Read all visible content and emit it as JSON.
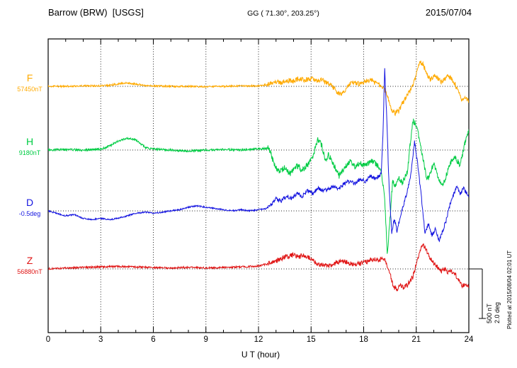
{
  "header": {
    "station": "Barrow (BRW)  [USGS]",
    "gg_coords": "GG ( 71.30°, 203.25°)",
    "date": "2015/07/04"
  },
  "side_note": "Plotted at 2015/08/04 02:01 UT",
  "scale_bar": {
    "nt_label": "500 nT",
    "deg_label": "2.0 deg",
    "nt": 500,
    "deg": 2.0
  },
  "x_axis": {
    "label": "U T (hour)",
    "min": 0,
    "max": 24,
    "major_ticks": [
      0,
      3,
      6,
      9,
      12,
      15,
      18,
      21,
      24
    ]
  },
  "chart_data": {
    "type": "line",
    "title": "Barrow (BRW) [USGS] magnetogram, 2015/07/04",
    "x_unit": "UT hour",
    "x_range": [
      0,
      24
    ],
    "grid": "dotted vertical at 3h intervals, dotted horizontal at each channel baseline",
    "scale": {
      "nT_per_bar": 500,
      "deg_per_bar": 2.0
    },
    "series": [
      {
        "name": "F",
        "unit": "nT",
        "baseline_label": "57450nT",
        "baseline_value": 57450,
        "color": "#FFAA00",
        "noise": 25,
        "points": [
          [
            0,
            0
          ],
          [
            1,
            0
          ],
          [
            2,
            5
          ],
          [
            3,
            5
          ],
          [
            3.5,
            10
          ],
          [
            4,
            25
          ],
          [
            4.5,
            35
          ],
          [
            5,
            25
          ],
          [
            5.5,
            10
          ],
          [
            6,
            5
          ],
          [
            7,
            0
          ],
          [
            8,
            0
          ],
          [
            9,
            -5
          ],
          [
            10,
            0
          ],
          [
            11,
            5
          ],
          [
            12,
            5
          ],
          [
            12.5,
            20
          ],
          [
            13,
            50
          ],
          [
            13.3,
            30
          ],
          [
            13.6,
            60
          ],
          [
            14,
            50
          ],
          [
            14.3,
            80
          ],
          [
            14.6,
            60
          ],
          [
            15,
            80
          ],
          [
            15.3,
            60
          ],
          [
            15.6,
            70
          ],
          [
            16,
            30
          ],
          [
            16.3,
            -20
          ],
          [
            16.6,
            -80
          ],
          [
            16.9,
            -60
          ],
          [
            17.2,
            20
          ],
          [
            17.5,
            40
          ],
          [
            17.8,
            20
          ],
          [
            18.1,
            50
          ],
          [
            18.4,
            70
          ],
          [
            18.7,
            30
          ],
          [
            19,
            10
          ],
          [
            19.2,
            -30
          ],
          [
            19.4,
            -120
          ],
          [
            19.6,
            -230
          ],
          [
            19.8,
            -270
          ],
          [
            20,
            -250
          ],
          [
            20.2,
            -180
          ],
          [
            20.4,
            -120
          ],
          [
            20.6,
            -60
          ],
          [
            20.8,
            0
          ],
          [
            21,
            120
          ],
          [
            21.2,
            240
          ],
          [
            21.4,
            220
          ],
          [
            21.6,
            120
          ],
          [
            21.8,
            60
          ],
          [
            22,
            110
          ],
          [
            22.2,
            90
          ],
          [
            22.4,
            40
          ],
          [
            22.6,
            70
          ],
          [
            22.8,
            100
          ],
          [
            23,
            80
          ],
          [
            23.2,
            30
          ],
          [
            23.4,
            -60
          ],
          [
            23.6,
            -130
          ],
          [
            23.8,
            -100
          ],
          [
            24,
            -160
          ]
        ]
      },
      {
        "name": "H",
        "unit": "nT",
        "baseline_label": "9180nT",
        "baseline_value": 9180,
        "color": "#00CC44",
        "noise": 30,
        "points": [
          [
            0,
            0
          ],
          [
            1,
            5
          ],
          [
            2,
            0
          ],
          [
            3,
            10
          ],
          [
            3.5,
            40
          ],
          [
            4,
            90
          ],
          [
            4.5,
            120
          ],
          [
            5,
            100
          ],
          [
            5.3,
            60
          ],
          [
            5.6,
            20
          ],
          [
            6,
            10
          ],
          [
            7,
            0
          ],
          [
            8,
            -10
          ],
          [
            9,
            0
          ],
          [
            10,
            5
          ],
          [
            11,
            0
          ],
          [
            12,
            10
          ],
          [
            12.6,
            20
          ],
          [
            12.9,
            -150
          ],
          [
            13.2,
            -220
          ],
          [
            13.5,
            -180
          ],
          [
            13.8,
            -240
          ],
          [
            14.2,
            -160
          ],
          [
            14.5,
            -200
          ],
          [
            14.8,
            -150
          ],
          [
            15.1,
            -60
          ],
          [
            15.4,
            110
          ],
          [
            15.6,
            50
          ],
          [
            15.8,
            -100
          ],
          [
            16,
            -50
          ],
          [
            16.3,
            -150
          ],
          [
            16.6,
            -260
          ],
          [
            16.9,
            -180
          ],
          [
            17.2,
            -120
          ],
          [
            17.5,
            -170
          ],
          [
            17.8,
            -130
          ],
          [
            18.1,
            -160
          ],
          [
            18.4,
            -110
          ],
          [
            18.7,
            -140
          ],
          [
            19,
            -210
          ],
          [
            19.2,
            -500
          ],
          [
            19.35,
            -1060
          ],
          [
            19.5,
            -700
          ],
          [
            19.65,
            -320
          ],
          [
            19.8,
            -360
          ],
          [
            20,
            -280
          ],
          [
            20.2,
            -330
          ],
          [
            20.5,
            -210
          ],
          [
            20.8,
            300
          ],
          [
            21,
            250
          ],
          [
            21.2,
            100
          ],
          [
            21.4,
            -100
          ],
          [
            21.6,
            -300
          ],
          [
            21.8,
            -250
          ],
          [
            22,
            -120
          ],
          [
            22.2,
            -260
          ],
          [
            22.5,
            -360
          ],
          [
            22.8,
            -210
          ],
          [
            23,
            -110
          ],
          [
            23.2,
            -60
          ],
          [
            23.5,
            -160
          ],
          [
            23.8,
            90
          ],
          [
            24,
            210
          ]
        ]
      },
      {
        "name": "D",
        "unit": "deg",
        "baseline_label": "-0.5deg",
        "baseline_value": -0.5,
        "color": "#1515E0",
        "noise": 0.08,
        "points": [
          [
            0,
            0
          ],
          [
            0.5,
            -0.1
          ],
          [
            1,
            -0.2
          ],
          [
            1.5,
            -0.15
          ],
          [
            2,
            -0.3
          ],
          [
            2.5,
            -0.35
          ],
          [
            3,
            -0.3
          ],
          [
            3.5,
            -0.35
          ],
          [
            4,
            -0.3
          ],
          [
            4.5,
            -0.2
          ],
          [
            5,
            -0.1
          ],
          [
            5.5,
            -0.05
          ],
          [
            6,
            -0.1
          ],
          [
            6.5,
            -0.05
          ],
          [
            7,
            0
          ],
          [
            7.5,
            0.05
          ],
          [
            8,
            0.15
          ],
          [
            8.5,
            0.2
          ],
          [
            9,
            0.15
          ],
          [
            9.5,
            0.1
          ],
          [
            10,
            0.05
          ],
          [
            10.5,
            0
          ],
          [
            11,
            0.05
          ],
          [
            11.5,
            0
          ],
          [
            12,
            0.05
          ],
          [
            12.5,
            0.1
          ],
          [
            12.8,
            0.3
          ],
          [
            13,
            0.5
          ],
          [
            13.3,
            0.4
          ],
          [
            13.6,
            0.6
          ],
          [
            13.9,
            0.5
          ],
          [
            14.2,
            0.7
          ],
          [
            14.5,
            0.6
          ],
          [
            14.8,
            0.8
          ],
          [
            15.1,
            0.7
          ],
          [
            15.4,
            0.9
          ],
          [
            15.7,
            0.8
          ],
          [
            16,
            0.9
          ],
          [
            16.3,
            1
          ],
          [
            16.6,
            0.9
          ],
          [
            16.9,
            1.1
          ],
          [
            17.2,
            1.2
          ],
          [
            17.5,
            1.1
          ],
          [
            17.8,
            1.3
          ],
          [
            18.1,
            1.2
          ],
          [
            18.4,
            1.4
          ],
          [
            18.7,
            1.3
          ],
          [
            19,
            1.5
          ],
          [
            19.1,
            3
          ],
          [
            19.2,
            5.8
          ],
          [
            19.3,
            4
          ],
          [
            19.45,
            1
          ],
          [
            19.6,
            -0.9
          ],
          [
            19.75,
            -0.3
          ],
          [
            19.9,
            -0.8
          ],
          [
            20.1,
            -0.2
          ],
          [
            20.3,
            0.3
          ],
          [
            20.5,
            0.8
          ],
          [
            20.7,
            1.5
          ],
          [
            20.9,
            2.8
          ],
          [
            21.1,
            1.8
          ],
          [
            21.3,
            0.5
          ],
          [
            21.5,
            -0.9
          ],
          [
            21.7,
            -0.5
          ],
          [
            21.9,
            -1
          ],
          [
            22.1,
            -0.7
          ],
          [
            22.3,
            -1.2
          ],
          [
            22.5,
            -0.8
          ],
          [
            22.7,
            -0.4
          ],
          [
            22.9,
            0.2
          ],
          [
            23.1,
            0.6
          ],
          [
            23.3,
            1
          ],
          [
            23.5,
            0.7
          ],
          [
            23.7,
            0.9
          ],
          [
            24,
            0.6
          ]
        ]
      },
      {
        "name": "Z",
        "unit": "nT",
        "baseline_label": "56880nT",
        "baseline_value": 56880,
        "color": "#E01515",
        "noise": 25,
        "points": [
          [
            0,
            0
          ],
          [
            1,
            10
          ],
          [
            2,
            15
          ],
          [
            3,
            20
          ],
          [
            4,
            25
          ],
          [
            5,
            20
          ],
          [
            6,
            15
          ],
          [
            7,
            10
          ],
          [
            8,
            15
          ],
          [
            9,
            10
          ],
          [
            10,
            15
          ],
          [
            11,
            20
          ],
          [
            12,
            30
          ],
          [
            12.5,
            50
          ],
          [
            13,
            80
          ],
          [
            13.5,
            120
          ],
          [
            14,
            140
          ],
          [
            14.3,
            120
          ],
          [
            14.6,
            140
          ],
          [
            15,
            100
          ],
          [
            15.3,
            60
          ],
          [
            15.6,
            40
          ],
          [
            16,
            30
          ],
          [
            16.4,
            60
          ],
          [
            16.8,
            80
          ],
          [
            17.1,
            60
          ],
          [
            17.4,
            40
          ],
          [
            17.7,
            50
          ],
          [
            18,
            60
          ],
          [
            18.3,
            80
          ],
          [
            18.6,
            100
          ],
          [
            18.9,
            90
          ],
          [
            19.1,
            110
          ],
          [
            19.3,
            60
          ],
          [
            19.5,
            -50
          ],
          [
            19.7,
            -180
          ],
          [
            19.9,
            -200
          ],
          [
            20.1,
            -170
          ],
          [
            20.3,
            -190
          ],
          [
            20.5,
            -160
          ],
          [
            20.8,
            -80
          ],
          [
            21,
            50
          ],
          [
            21.2,
            180
          ],
          [
            21.4,
            250
          ],
          [
            21.6,
            180
          ],
          [
            21.8,
            100
          ],
          [
            22,
            60
          ],
          [
            22.2,
            20
          ],
          [
            22.4,
            -20
          ],
          [
            22.6,
            0
          ],
          [
            22.8,
            -30
          ],
          [
            23,
            -20
          ],
          [
            23.2,
            -50
          ],
          [
            23.4,
            -100
          ],
          [
            23.6,
            -180
          ],
          [
            23.8,
            -150
          ],
          [
            24,
            -170
          ]
        ]
      }
    ]
  }
}
